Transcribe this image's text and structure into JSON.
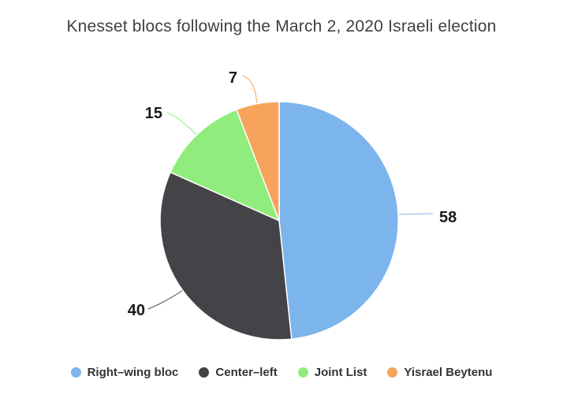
{
  "chart": {
    "title": "Knesset blocs following the March 2, 2020 Israeli election"
  },
  "chart_data": {
    "type": "pie",
    "title": "Knesset blocs following the March 2, 2020 Israeli election",
    "categories": [
      "Right–wing bloc",
      "Center–left",
      "Joint List",
      "Yisrael Beytenu"
    ],
    "values": [
      58,
      40,
      15,
      7
    ],
    "data_labels": [
      "58",
      "40",
      "15",
      "7"
    ],
    "colors": [
      "#7cb5ec",
      "#434348",
      "#90ed7d",
      "#f7a35c"
    ],
    "start_angle_deg": 0,
    "direction": "clockwise",
    "legend_position": "bottom",
    "background_color": "#ffffff",
    "title_color": "#404040",
    "data_label_color": "#1a1a1a",
    "legend_text_color": "#333333"
  }
}
